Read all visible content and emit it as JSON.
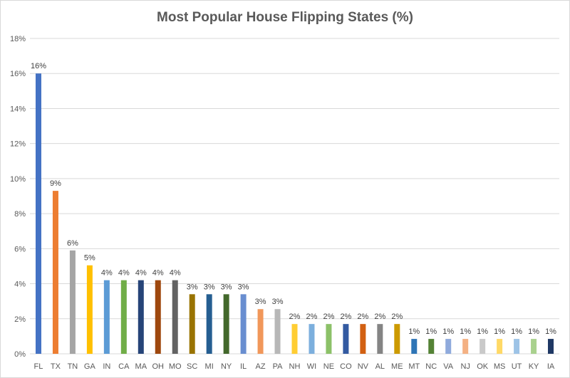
{
  "chart_data": {
    "type": "bar",
    "title": "Most Popular House Flipping States (%)",
    "xlabel": "",
    "ylabel": "",
    "ylim": [
      0,
      18
    ],
    "yticks": [
      0,
      2,
      4,
      6,
      8,
      10,
      12,
      14,
      16,
      18
    ],
    "ytick_labels": [
      "0%",
      "2%",
      "4%",
      "6%",
      "8%",
      "10%",
      "12%",
      "14%",
      "16%",
      "18%"
    ],
    "grid": true,
    "legend": "none",
    "categories": [
      "FL",
      "TX",
      "TN",
      "GA",
      "IN",
      "CA",
      "MA",
      "OH",
      "MO",
      "SC",
      "MI",
      "NY",
      "IL",
      "AZ",
      "PA",
      "NH",
      "WI",
      "NE",
      "CO",
      "NV",
      "AL",
      "ME",
      "MT",
      "NC",
      "VA",
      "NJ",
      "OK",
      "MS",
      "UT",
      "KY",
      "IA"
    ],
    "values": [
      16.0,
      9.3,
      5.9,
      5.05,
      4.2,
      4.2,
      4.2,
      4.2,
      4.2,
      3.4,
      3.4,
      3.4,
      3.4,
      2.55,
      2.55,
      1.7,
      1.7,
      1.7,
      1.7,
      1.7,
      1.7,
      1.7,
      0.85,
      0.85,
      0.85,
      0.85,
      0.85,
      0.85,
      0.85,
      0.85,
      0.85
    ],
    "data_labels": [
      "16%",
      "9%",
      "6%",
      "5%",
      "4%",
      "4%",
      "4%",
      "4%",
      "4%",
      "3%",
      "3%",
      "3%",
      "3%",
      "3%",
      "3%",
      "2%",
      "2%",
      "2%",
      "2%",
      "2%",
      "2%",
      "2%",
      "1%",
      "1%",
      "1%",
      "1%",
      "1%",
      "1%",
      "1%",
      "1%",
      "1%"
    ],
    "colors": [
      "#4472c4",
      "#ed7d31",
      "#a5a5a5",
      "#ffc000",
      "#5b9bd5",
      "#70ad47",
      "#264478",
      "#9e480e",
      "#636363",
      "#997300",
      "#255e91",
      "#43682b",
      "#698ed0",
      "#f1975a",
      "#b7b7b7",
      "#ffcd33",
      "#7cafdd",
      "#8cc168",
      "#335aa1",
      "#d26012",
      "#848484",
      "#cc9a00",
      "#2e75b6",
      "#548235",
      "#8faadc",
      "#f4b183",
      "#c9c9c9",
      "#ffd966",
      "#9dc3e6",
      "#a9d18e",
      "#1f3864"
    ],
    "gridline_color": "#d9d9d9"
  }
}
